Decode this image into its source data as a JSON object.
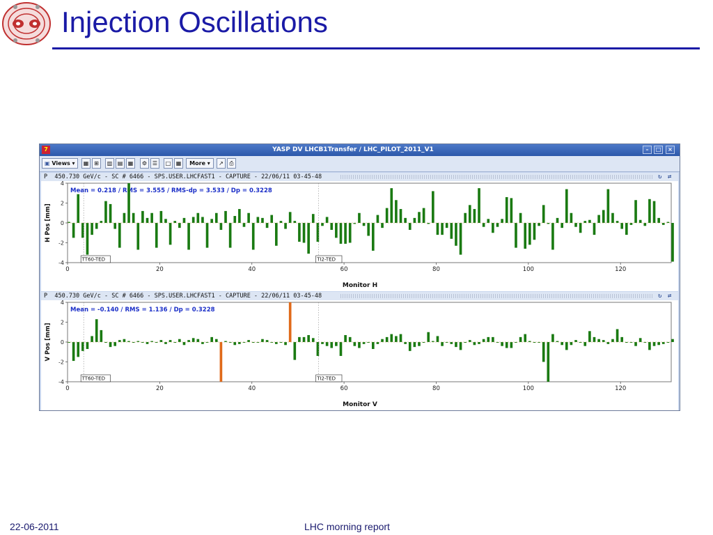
{
  "slide": {
    "title": "Injection Oscillations",
    "footer_date": "22-06-2011",
    "footer_title": "LHC morning report"
  },
  "window": {
    "title": "YASP DV LHCB1Transfer / LHC_PILOT_2011_V1",
    "app_icon": "yasp-app-icon",
    "controls": [
      "minimize-icon",
      "maximize-icon",
      "close-icon"
    ]
  },
  "toolbar": {
    "views_label": "Views",
    "more_label": "More"
  },
  "colors": {
    "bar": "#1a7a12",
    "highlight_bar": "#e06a1a",
    "window_bg": "#c8d6ee",
    "annot_text": "#1b2fc8",
    "title_blue": "#1a1aa6"
  },
  "chart_data": [
    {
      "type": "bar",
      "header": "P  450.730 GeV/c - SC # 6466 - SPS.USER.LHCFAST1 - CAPTURE - 22/06/11 03-45-48",
      "annotation": "Mean =   0.218 / RMS =   3.555 / RMS-dp =   3.533 / Dp =  0.3228",
      "xlabel": "Monitor H",
      "ylabel": "H Pos [mm]",
      "xlim": [
        0,
        131
      ],
      "ylim": [
        -4,
        4
      ],
      "xticks": [
        0,
        20,
        40,
        60,
        80,
        100,
        120
      ],
      "yticks": [
        4,
        2,
        0,
        -2,
        -4
      ],
      "markers": [
        {
          "x": 3.5,
          "label": "TT60-TED"
        },
        {
          "x": 54.5,
          "label": "TI2-TED"
        }
      ],
      "series": [
        {
          "values": [
            0.1,
            -1.5,
            2.9,
            -1.5,
            -3.2,
            -1.2,
            -0.6,
            0.2,
            2.2,
            1.9,
            -0.6,
            -2.5,
            1.0,
            4.0,
            1.0,
            -2.7,
            1.2,
            0.5,
            1.0,
            -2.5,
            1.2,
            0.4,
            -2.2,
            0.2,
            -0.5,
            0.5,
            -2.7,
            0.6,
            1.0,
            0.6,
            -2.5,
            0.4,
            1.0,
            -0.7,
            1.2,
            -2.5,
            0.7,
            1.4,
            -0.4,
            1.0,
            -2.7,
            0.6,
            0.5,
            -0.5,
            0.8,
            -2.3,
            0.2,
            -0.6,
            1.1,
            0.2,
            -1.9,
            -2.0,
            -3.1,
            0.9,
            -1.9,
            -0.3,
            0.6,
            -0.7,
            -1.5,
            -2.1,
            -2.1,
            -2.0,
            -0.1,
            1.0,
            -0.3,
            -1.3,
            -2.8,
            0.8,
            -0.5,
            1.5,
            3.5,
            2.3,
            1.4,
            0.5,
            -0.7,
            0.5,
            1.1,
            1.5,
            -0.1,
            3.2,
            -1.2,
            -1.2,
            -0.5,
            -1.6,
            -2.3,
            -3.2,
            1.0,
            1.8,
            1.4,
            3.5,
            -0.4,
            0.4,
            -1.0,
            -0.4,
            0.4,
            2.6,
            2.5,
            -2.5,
            1.0,
            -2.6,
            -2.2,
            -1.7,
            -0.3,
            1.8,
            -0.1,
            -2.7,
            0.5,
            -0.5,
            3.4,
            1.0,
            -0.4,
            -1.0,
            0.2,
            0.3,
            -1.2,
            0.8,
            1.3,
            3.4,
            1.0,
            0.2,
            -0.6,
            -1.2,
            -0.2,
            2.3,
            0.3,
            -0.3,
            2.4,
            2.2,
            0.5,
            -0.2,
            0.1,
            -3.9
          ]
        }
      ]
    },
    {
      "type": "bar",
      "header": "P  450.730 GeV/c - SC # 6466 - SPS.USER.LHCFAST1 - CAPTURE - 22/06/11 03-45-48",
      "annotation": "Mean =  -0.140 / RMS =   1.136 / Dp =  0.3228",
      "xlabel": "Monitor V",
      "ylabel": "V Pos [mm]",
      "xlim": [
        0,
        131
      ],
      "ylim": [
        -4,
        4
      ],
      "xticks": [
        0,
        20,
        40,
        60,
        80,
        100,
        120
      ],
      "yticks": [
        4,
        2,
        0,
        -2,
        -4
      ],
      "markers": [
        {
          "x": 3.5,
          "label": "TT60-TED"
        },
        {
          "x": 54.5,
          "label": "TI2-TED"
        }
      ],
      "highlights": [
        {
          "index": 33,
          "value": -4.0
        },
        {
          "index": 48,
          "value": 4.0
        }
      ],
      "series": [
        {
          "values": [
            0.0,
            -1.9,
            -1.5,
            -0.9,
            -0.7,
            0.6,
            2.3,
            1.2,
            0.0,
            -0.5,
            -0.4,
            0.2,
            0.3,
            0.1,
            0.0,
            0.1,
            0.0,
            -0.2,
            0.1,
            0.0,
            0.2,
            -0.2,
            0.2,
            0.0,
            0.3,
            -0.3,
            0.2,
            0.4,
            0.3,
            -0.2,
            0.0,
            0.5,
            0.3,
            -4.0,
            0.1,
            0.0,
            -0.3,
            -0.2,
            0.0,
            0.2,
            0.0,
            0.0,
            0.3,
            0.2,
            0.0,
            -0.2,
            0.0,
            -0.3,
            4.0,
            -1.8,
            0.5,
            0.5,
            0.7,
            0.4,
            -1.4,
            -0.2,
            -0.4,
            -0.6,
            -0.4,
            -1.4,
            0.7,
            0.5,
            -0.4,
            -0.6,
            -0.2,
            0.0,
            -0.7,
            -0.2,
            0.3,
            0.5,
            0.8,
            0.6,
            0.8,
            -0.2,
            -0.9,
            -0.5,
            -0.4,
            0.0,
            1.0,
            0.1,
            0.6,
            -0.4,
            0.0,
            -0.2,
            -0.5,
            -0.8,
            0.0,
            0.2,
            -0.3,
            -0.2,
            0.3,
            0.5,
            0.5,
            0.0,
            -0.4,
            -0.6,
            -0.6,
            0.0,
            0.5,
            0.8,
            0.1,
            0.0,
            0.0,
            -2.0,
            -4.0,
            0.8,
            0.1,
            -0.3,
            -0.8,
            -0.3,
            0.2,
            0.0,
            -0.4,
            1.1,
            0.5,
            0.3,
            0.2,
            -0.2,
            0.3,
            1.3,
            0.5,
            0.0,
            0.0,
            -0.4,
            0.4,
            0.0,
            -0.8,
            -0.4,
            -0.3,
            -0.2,
            0.0,
            0.3
          ]
        }
      ]
    }
  ]
}
